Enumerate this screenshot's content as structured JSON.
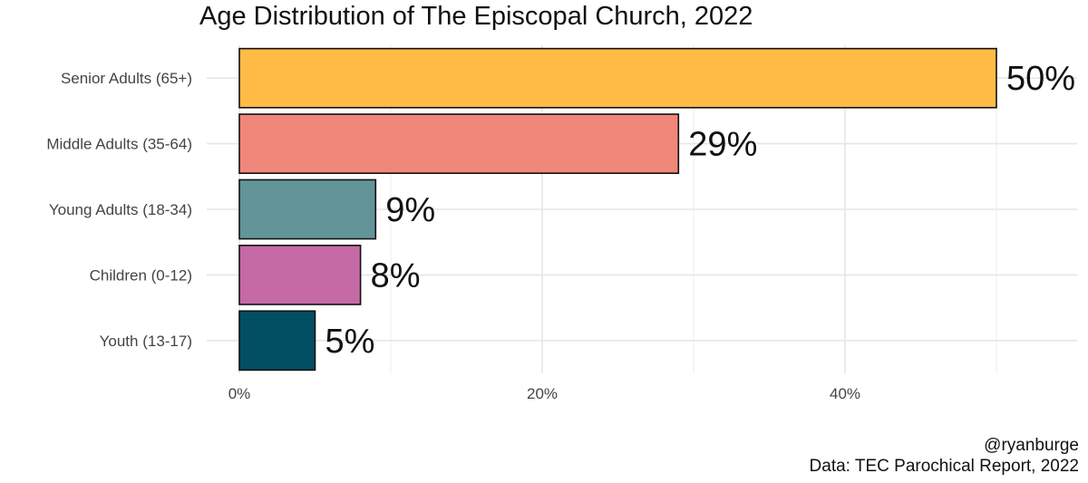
{
  "chart_data": {
    "type": "bar",
    "orientation": "horizontal",
    "title": "Age Distribution of The Episcopal Church, 2022",
    "xlabel": "",
    "ylabel": "",
    "categories": [
      "Senior Adults (65+)",
      "Middle Adults (35-64)",
      "Young Adults (18-34)",
      "Children (0-12)",
      "Youth (13-17)"
    ],
    "values": [
      50,
      29,
      9,
      8,
      5
    ],
    "value_labels": [
      "50%",
      "29%",
      "9%",
      "8%",
      "5%"
    ],
    "colors": [
      "#FFBB45",
      "#F0877A",
      "#62949A",
      "#C56AA4",
      "#024E63"
    ],
    "x_ticks": [
      0,
      20,
      40
    ],
    "x_tick_labels": [
      "0%",
      "20%",
      "40%"
    ],
    "xlim": [
      0,
      55
    ],
    "grid": true,
    "legend": "none"
  },
  "caption": {
    "author": "@ryanburge",
    "source": "Data: TEC Parochical Report, 2022"
  }
}
